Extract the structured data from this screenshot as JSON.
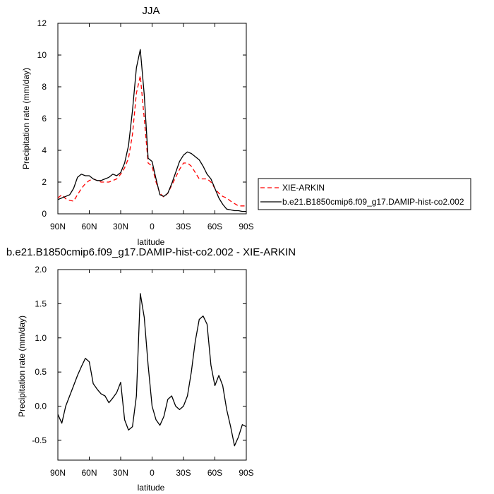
{
  "chart_data": [
    {
      "type": "line",
      "title": "JJA",
      "xlabel": "latitude",
      "ylabel": "Precipitation rate (mm/day)",
      "xticks": [
        "90N",
        "60N",
        "30N",
        "0",
        "30S",
        "60S",
        "90S"
      ],
      "xtick_values": [
        90,
        60,
        30,
        0,
        -30,
        -60,
        -90
      ],
      "xlim": [
        90,
        -90
      ],
      "ylim": [
        0,
        12
      ],
      "yticks": [
        0,
        2,
        4,
        6,
        8,
        10,
        12
      ],
      "ytick_labels": [
        "0",
        "2",
        "4",
        "6",
        "8",
        "10",
        "12"
      ],
      "legend_position": "right",
      "series": [
        {
          "name": "XIE-ARKIN",
          "color": "#ff0000",
          "dash": "dashed",
          "x": [
            90,
            86.25,
            82.5,
            78.75,
            75,
            71.25,
            67.5,
            63.75,
            60,
            56.25,
            52.5,
            48.75,
            45,
            41.25,
            37.5,
            33.75,
            30,
            26.25,
            22.5,
            18.75,
            15,
            11.25,
            7.5,
            3.75,
            0,
            -3.75,
            -7.5,
            -11.25,
            -15,
            -18.75,
            -22.5,
            -26.25,
            -30,
            -33.75,
            -37.5,
            -41.25,
            -45,
            -48.75,
            -52.5,
            -56.25,
            -60,
            -63.75,
            -67.5,
            -71.25,
            -75,
            -78.75,
            -82.5,
            -86.25,
            -90
          ],
          "y": [
            1.0,
            1.2,
            0.95,
            0.85,
            0.8,
            1.2,
            1.6,
            1.9,
            2.1,
            2.2,
            2.1,
            2.0,
            2.0,
            2.0,
            2.1,
            2.2,
            2.5,
            2.9,
            3.5,
            5.0,
            7.6,
            8.7,
            6.0,
            3.2,
            3.0,
            2.0,
            1.3,
            1.05,
            1.3,
            1.8,
            2.3,
            2.8,
            3.2,
            3.2,
            3.0,
            2.6,
            2.2,
            2.2,
            2.2,
            2.0,
            1.6,
            1.3,
            1.1,
            1.0,
            0.8,
            0.65,
            0.5,
            0.5,
            0.5
          ]
        },
        {
          "name": "b.e21.B1850cmip6.f09_g17.DAMIP-hist-co2.002",
          "color": "#000000",
          "dash": "solid",
          "x": [
            90,
            86.25,
            82.5,
            78.75,
            75,
            71.25,
            67.5,
            63.75,
            60,
            56.25,
            52.5,
            48.75,
            45,
            41.25,
            37.5,
            33.75,
            30,
            26.25,
            22.5,
            18.75,
            15,
            11.25,
            7.5,
            3.75,
            0,
            -3.75,
            -7.5,
            -11.25,
            -15,
            -18.75,
            -22.5,
            -26.25,
            -30,
            -33.75,
            -37.5,
            -41.25,
            -45,
            -48.75,
            -52.5,
            -56.25,
            -60,
            -63.75,
            -67.5,
            -71.25,
            -75,
            -78.75,
            -82.5,
            -86.25,
            -90
          ],
          "y": [
            0.9,
            1.0,
            1.1,
            1.2,
            1.6,
            2.3,
            2.5,
            2.4,
            2.4,
            2.2,
            2.1,
            2.1,
            2.2,
            2.3,
            2.5,
            2.4,
            2.6,
            3.2,
            4.3,
            6.5,
            9.2,
            10.35,
            7.5,
            3.5,
            3.3,
            2.2,
            1.2,
            1.1,
            1.3,
            1.9,
            2.6,
            3.3,
            3.7,
            3.9,
            3.8,
            3.6,
            3.4,
            3.0,
            2.5,
            2.2,
            1.6,
            1.0,
            0.6,
            0.3,
            0.25,
            0.2,
            0.2,
            0.15,
            0.15
          ]
        }
      ]
    },
    {
      "type": "line",
      "title": "b.e21.B1850cmip6.f09_g17.DAMIP-hist-co2.002 - XIE-ARKIN",
      "xlabel": "latitude",
      "ylabel": "Precipitation rate (mm/day)",
      "xticks": [
        "90N",
        "60N",
        "30N",
        "0",
        "30S",
        "60S",
        "90S"
      ],
      "xtick_values": [
        90,
        60,
        30,
        0,
        -30,
        -60,
        -90
      ],
      "xlim": [
        90,
        -90
      ],
      "ylim": [
        -0.79,
        2.0
      ],
      "yticks": [
        -0.5,
        0,
        0.5,
        1.0,
        1.5,
        2.0
      ],
      "ytick_labels": [
        "-0.5",
        "0.0",
        "0.5",
        "1.0",
        "1.5",
        "2.0"
      ],
      "series": [
        {
          "color": "#000000",
          "dash": "solid",
          "x": [
            90,
            86.25,
            82.5,
            78.75,
            75,
            71.25,
            67.5,
            63.75,
            60,
            56.25,
            52.5,
            48.75,
            45,
            41.25,
            37.5,
            33.75,
            30,
            26.25,
            22.5,
            18.75,
            15,
            11.25,
            7.5,
            3.75,
            0,
            -3.75,
            -7.5,
            -11.25,
            -15,
            -18.75,
            -22.5,
            -26.25,
            -30,
            -33.75,
            -37.5,
            -41.25,
            -45,
            -48.75,
            -52.5,
            -56.25,
            -60,
            -63.75,
            -67.5,
            -71.25,
            -75,
            -78.75,
            -82.5,
            -86.25,
            -90
          ],
          "y": [
            -0.12,
            -0.25,
            0.0,
            0.15,
            0.3,
            0.45,
            0.58,
            0.7,
            0.65,
            0.33,
            0.25,
            0.18,
            0.15,
            0.05,
            0.12,
            0.2,
            0.35,
            -0.2,
            -0.35,
            -0.3,
            0.15,
            1.65,
            1.3,
            0.6,
            0.0,
            -0.2,
            -0.28,
            -0.15,
            0.1,
            0.15,
            0.0,
            -0.05,
            0.0,
            0.15,
            0.5,
            0.95,
            1.27,
            1.32,
            1.2,
            0.6,
            0.3,
            0.45,
            0.3,
            -0.05,
            -0.3,
            -0.58,
            -0.45,
            -0.27,
            -0.3
          ]
        }
      ]
    }
  ]
}
